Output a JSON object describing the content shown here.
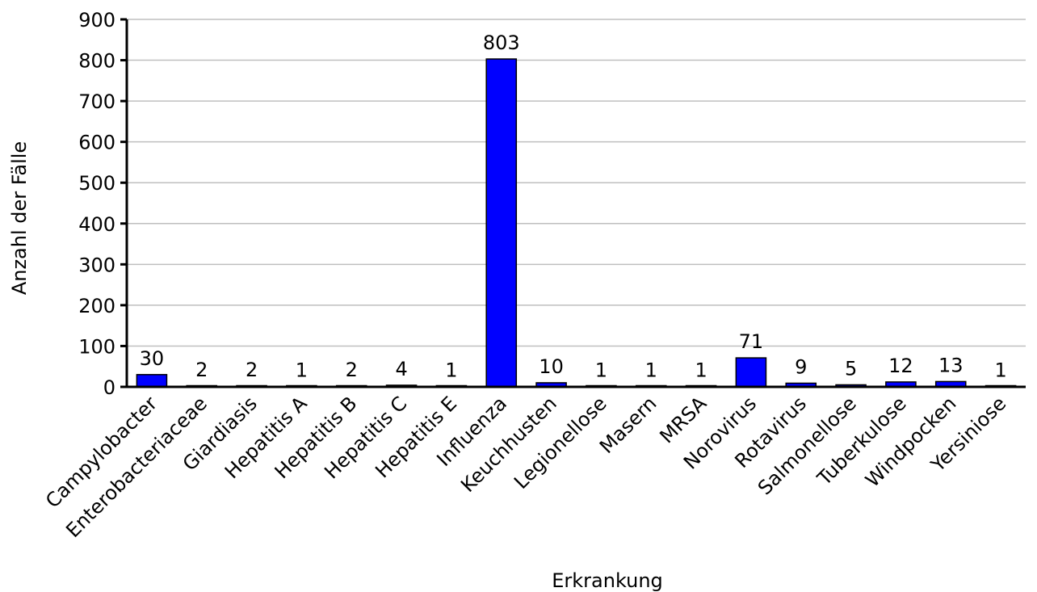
{
  "chart_data": {
    "type": "bar",
    "title": "",
    "xlabel": "Erkrankung",
    "ylabel": "Anzahl der Fälle",
    "ylim": [
      0,
      900
    ],
    "yticks": [
      0,
      100,
      200,
      300,
      400,
      500,
      600,
      700,
      800,
      900
    ],
    "grid": true,
    "legend": "none",
    "bar_color": "#0000ff",
    "bar_edge_color": "#000000",
    "grid_color": "#bfbfbf",
    "categories": [
      "Campylobacter",
      "Enterobacteriaceae",
      "Giardiasis",
      "Hepatitis A",
      "Hepatitis B",
      "Hepatitis C",
      "Hepatitis E",
      "Influenza",
      "Keuchhusten",
      "Legionellose",
      "Masern",
      "MRSA",
      "Norovirus",
      "Rotavirus",
      "Salmonellose",
      "Tuberkulose",
      "Windpocken",
      "Yersiniose"
    ],
    "values": [
      30,
      2,
      2,
      1,
      2,
      4,
      1,
      803,
      10,
      1,
      1,
      1,
      71,
      9,
      5,
      12,
      13,
      1
    ]
  }
}
